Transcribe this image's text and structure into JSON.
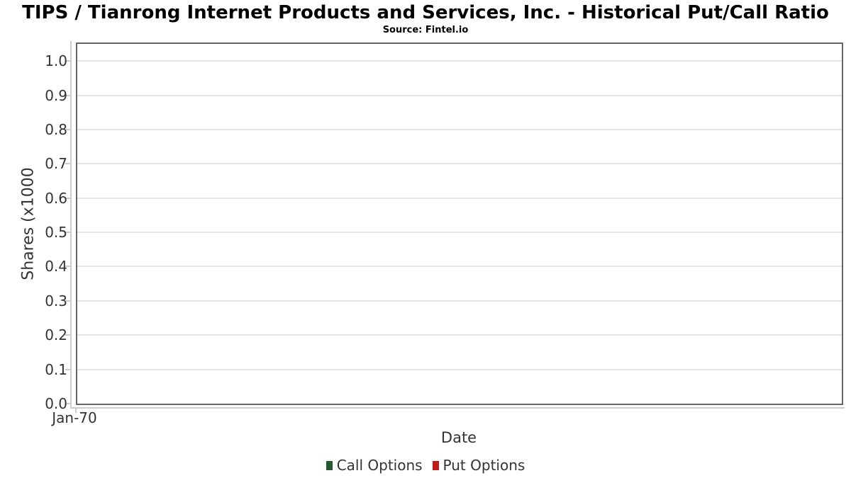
{
  "chart_data": {
    "type": "line",
    "title": "TIPS / Tianrong Internet Products and Services, Inc. - Historical Put/Call Ratio",
    "subtitle": "Source: Fintel.io",
    "xlabel": "Date",
    "ylabel": "Shares (x1000",
    "x_tick_labels": [
      "Jan-70"
    ],
    "x_tick_positions": [
      0
    ],
    "y_ticks": [
      0,
      0.1,
      0.2,
      0.3,
      0.4,
      0.5,
      0.6,
      0.7,
      0.8,
      0.9,
      1.0
    ],
    "y_tick_labels": [
      "0.0",
      "0.1",
      "0.2",
      "0.3",
      "0.4",
      "0.5",
      "0.6",
      "0.7",
      "0.8",
      "0.9",
      "1.0"
    ],
    "ylim": [
      0,
      1.05
    ],
    "grid": true,
    "legend_position": "bottom-center",
    "series": [
      {
        "name": "Call Options",
        "color": "#265931",
        "x": [],
        "values": []
      },
      {
        "name": "Put Options",
        "color": "#c11a1a",
        "x": [],
        "values": []
      }
    ]
  },
  "colors": {
    "plot_border": "#666666",
    "gridline": "#e5e5e5",
    "axis_line": "#cccccc",
    "tick_text": "#333333",
    "title_text": "#000000",
    "call_options": "#265931",
    "put_options": "#c11a1a"
  }
}
